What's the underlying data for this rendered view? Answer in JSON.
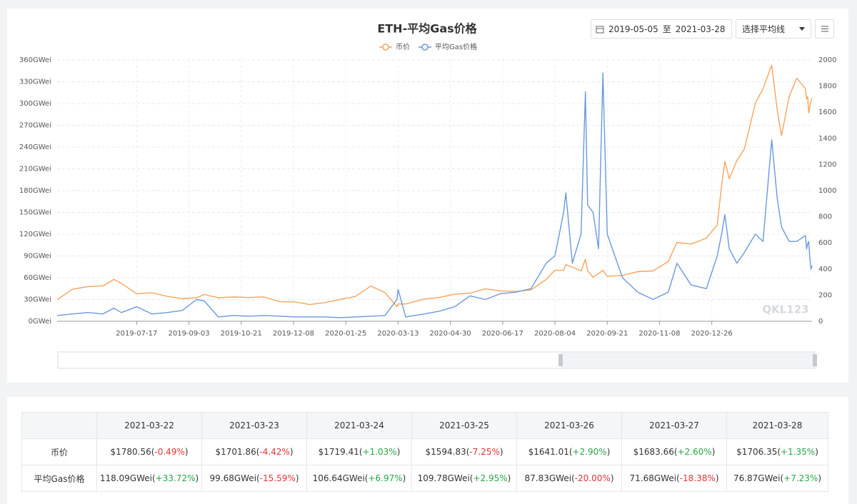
{
  "chart_data": {
    "type": "line",
    "title": "ETH-平均Gas价格",
    "watermark": "QKL123",
    "x": [
      "2019-05-05",
      "2019-05-19",
      "2019-06-02",
      "2019-06-16",
      "2019-06-26",
      "2019-07-03",
      "2019-07-17",
      "2019-07-31",
      "2019-08-14",
      "2019-08-28",
      "2019-09-10",
      "2019-09-17",
      "2019-09-30",
      "2019-10-14",
      "2019-10-28",
      "2019-11-11",
      "2019-11-25",
      "2019-12-09",
      "2019-12-23",
      "2020-01-06",
      "2020-01-20",
      "2020-02-03",
      "2020-02-17",
      "2020-03-01",
      "2020-03-12",
      "2020-03-13",
      "2020-03-20",
      "2020-04-06",
      "2020-04-20",
      "2020-05-04",
      "2020-05-18",
      "2020-06-01",
      "2020-06-15",
      "2020-06-29",
      "2020-07-13",
      "2020-07-27",
      "2020-08-04",
      "2020-08-12",
      "2020-08-14",
      "2020-08-20",
      "2020-08-28",
      "2020-09-01",
      "2020-09-03",
      "2020-09-08",
      "2020-09-13",
      "2020-09-17",
      "2020-09-21",
      "2020-10-05",
      "2020-10-19",
      "2020-11-02",
      "2020-11-16",
      "2020-11-24",
      "2020-12-07",
      "2020-12-21",
      "2020-12-31",
      "2021-01-04",
      "2021-01-07",
      "2021-01-11",
      "2021-01-18",
      "2021-01-25",
      "2021-02-04",
      "2021-02-11",
      "2021-02-19",
      "2021-02-24",
      "2021-02-28",
      "2021-03-07",
      "2021-03-14",
      "2021-03-22",
      "2021-03-23",
      "2021-03-24",
      "2021-03-25",
      "2021-03-26",
      "2021-03-27",
      "2021-03-28"
    ],
    "series": [
      {
        "name": "币价",
        "color": "#f7a35c",
        "axis": "y2",
        "values": [
          165,
          245,
          265,
          270,
          320,
          290,
          210,
          218,
          190,
          172,
          180,
          205,
          180,
          186,
          182,
          186,
          150,
          148,
          128,
          143,
          167,
          190,
          270,
          219,
          112,
          133,
          132,
          170,
          182,
          207,
          215,
          248,
          233,
          228,
          240,
          320,
          390,
          390,
          433,
          415,
          385,
          475,
          386,
          337,
          365,
          390,
          345,
          351,
          380,
          385,
          457,
          604,
          591,
          636,
          737,
          1040,
          1224,
          1090,
          1230,
          1320,
          1670,
          1780,
          1960,
          1620,
          1420,
          1720,
          1860,
          1780.56,
          1701.86,
          1719.41,
          1594.83,
          1641.01,
          1683.66,
          1706.35
        ]
      },
      {
        "name": "平均Gas价格",
        "color": "#6a98dd",
        "values": [
          8,
          10,
          12,
          10,
          18,
          12,
          20,
          10,
          12,
          15,
          30,
          28,
          6,
          8,
          7,
          8,
          7,
          6,
          6,
          6,
          5,
          6,
          7,
          8,
          30,
          44,
          6,
          10,
          14,
          20,
          35,
          30,
          38,
          40,
          45,
          80,
          90,
          150,
          177,
          80,
          120,
          316,
          160,
          150,
          100,
          342,
          120,
          60,
          40,
          30,
          40,
          80,
          50,
          45,
          90,
          120,
          147,
          100,
          80,
          95,
          120,
          110,
          250,
          170,
          130,
          110,
          110,
          118.09,
          99.68,
          106.64,
          109.78,
          87.83,
          71.68,
          76.87
        ]
      }
    ],
    "xlim": [
      "2019-05-05",
      "2021-03-28"
    ],
    "xticks": [
      "2019-07-17",
      "2019-09-03",
      "2019-10-21",
      "2019-12-08",
      "2020-01-25",
      "2020-03-13",
      "2020-04-30",
      "2020-06-17",
      "2020-08-04",
      "2020-09-21",
      "2020-11-08",
      "2020-12-26"
    ],
    "ylim": [
      0,
      360
    ],
    "yticks": [
      {
        "value": 0,
        "label": "0GWei"
      },
      {
        "value": 30,
        "label": "30GWei"
      },
      {
        "value": 60,
        "label": "60GWei"
      },
      {
        "value": 90,
        "label": "90GWei"
      },
      {
        "value": 120,
        "label": "120GWei"
      },
      {
        "value": 150,
        "label": "150GWei"
      },
      {
        "value": 180,
        "label": "180GWei"
      },
      {
        "value": 210,
        "label": "210GWei"
      },
      {
        "value": 240,
        "label": "240GWei"
      },
      {
        "value": 270,
        "label": "270GWei"
      },
      {
        "value": 300,
        "label": "300GWei"
      },
      {
        "value": 330,
        "label": "330GWei"
      },
      {
        "value": 360,
        "label": "360GWei"
      }
    ],
    "y2lim": [
      0,
      2000
    ],
    "y2ticks": [
      0,
      200,
      400,
      600,
      800,
      1000,
      1200,
      1400,
      1600,
      1800,
      2000
    ],
    "grid": true,
    "legend": "top"
  },
  "toolbar": {
    "start": "2019-05-05",
    "separator": "至",
    "end": "2021-03-28",
    "ma_select": "选择平均线"
  },
  "table": {
    "header": [
      "2021-03-22",
      "2021-03-23",
      "2021-03-24",
      "2021-03-25",
      "2021-03-26",
      "2021-03-27",
      "2021-03-28"
    ],
    "rows": [
      {
        "label": "币价",
        "cells": [
          "$1780.56(-0.49%)",
          "$1701.86(-4.42%)",
          "$1719.41(+1.03%)",
          "$1594.83(-7.25%)",
          "$1641.01(+2.90%)",
          "$1683.66(+2.60%)",
          "$1706.35(+1.35%)"
        ]
      },
      {
        "label": "平均Gas价格",
        "cells": [
          "118.09GWei(+33.72%)",
          "99.68GWei(-15.59%)",
          "106.64GWei(+6.97%)",
          "109.78GWei(+2.95%)",
          "87.83GWei(-20.00%)",
          "71.68GWei(-18.38%)",
          "76.87GWei(+7.23%)"
        ]
      }
    ]
  }
}
